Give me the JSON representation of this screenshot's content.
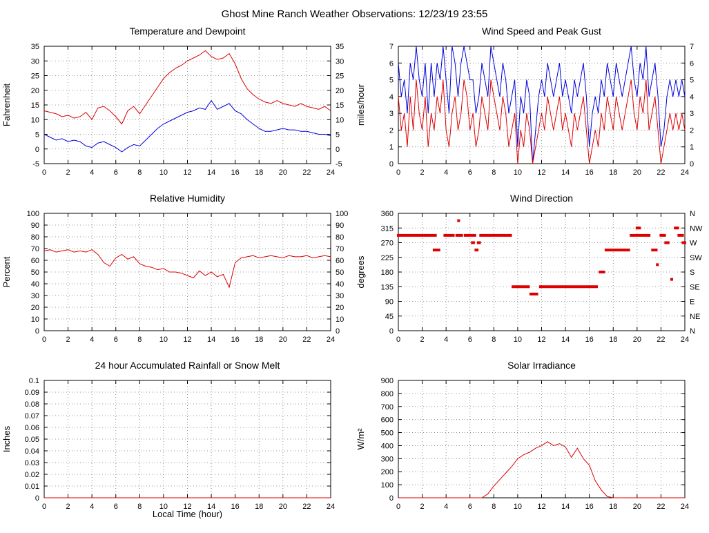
{
  "page": {
    "title": "Ghost Mine Ranch Weather Observations: 12/23/19 23:55"
  },
  "chart_data": [
    {
      "id": "temperature-dewpoint",
      "type": "line",
      "title": "Temperature and Dewpoint",
      "ylabel": "Fahrenheit",
      "xlim": [
        0,
        24
      ],
      "xtick_step": 2,
      "ylim": [
        -5,
        35
      ],
      "ytick_step": 5,
      "right_labels": "mirror",
      "grid": true,
      "series": [
        {
          "name": "Temperature",
          "color": "#dd0000",
          "x0": 0,
          "dx": 0.5,
          "values": [
            13,
            12.5,
            12,
            11,
            11.5,
            10.5,
            11,
            12.5,
            10,
            14,
            14.5,
            13,
            11,
            8.5,
            13,
            14.5,
            12,
            15,
            18,
            21,
            24,
            26,
            27.5,
            28.5,
            30,
            31,
            32,
            33.5,
            31.5,
            30.5,
            31,
            32.5,
            29,
            24,
            20.5,
            18.5,
            17,
            16,
            15.5,
            16.5,
            15.5,
            15,
            14.5,
            15.5,
            14.5,
            14,
            13.5,
            14.5,
            13
          ]
        },
        {
          "name": "Dewpoint",
          "color": "#0000dd",
          "x0": 0,
          "dx": 0.5,
          "values": [
            5,
            4,
            3,
            3.5,
            2.5,
            3,
            2.5,
            1,
            0.5,
            2,
            2.5,
            1.5,
            0.5,
            -1,
            0.5,
            1.5,
            1,
            3,
            5,
            7,
            8.5,
            9.5,
            10.5,
            11.5,
            12.5,
            13,
            14,
            13.5,
            16.5,
            13.5,
            14.5,
            15.5,
            13,
            12,
            10,
            8.5,
            7,
            6,
            6,
            6.5,
            7,
            6.5,
            6.5,
            6,
            6,
            5.5,
            5,
            5,
            4.5
          ]
        }
      ]
    },
    {
      "id": "wind-speed-gust",
      "type": "line",
      "title": "Wind Speed and Peak Gust",
      "ylabel": "miles/hour",
      "xlim": [
        0,
        24
      ],
      "xtick_step": 2,
      "ylim": [
        0,
        7
      ],
      "ytick_step": 1,
      "right_labels": "mirror",
      "grid": true,
      "series": [
        {
          "name": "Peak Gust",
          "color": "#0000dd",
          "x0": 0,
          "dx": 0.25,
          "values": [
            6,
            4,
            5,
            3,
            6,
            5,
            7,
            5,
            4,
            6,
            3,
            6,
            4,
            6,
            5,
            7,
            5,
            3,
            7,
            6,
            4,
            6,
            7,
            6,
            5,
            5,
            3,
            4,
            6,
            5,
            4,
            7,
            6,
            5,
            4,
            6,
            5,
            3,
            4,
            5,
            1,
            4,
            3,
            5,
            4,
            0,
            2,
            4,
            5,
            4,
            6,
            5,
            4,
            5,
            6,
            4,
            5,
            4,
            3,
            5,
            4,
            5,
            6,
            4,
            1,
            3,
            4,
            3,
            5,
            4,
            6,
            5,
            4,
            6,
            5,
            4,
            5,
            6,
            7,
            5,
            4,
            6,
            5,
            7,
            4,
            5,
            6,
            4,
            1,
            2,
            4,
            5,
            4,
            5,
            4,
            5,
            4
          ]
        },
        {
          "name": "Wind Speed",
          "color": "#dd0000",
          "x0": 0,
          "dx": 0.25,
          "values": [
            4,
            2,
            3,
            1,
            4,
            2,
            5,
            3,
            2,
            4,
            1,
            3,
            2,
            4,
            3,
            5,
            2,
            1,
            3,
            4,
            2,
            3,
            5,
            4,
            2,
            3,
            1,
            2,
            4,
            3,
            2,
            5,
            4,
            3,
            2,
            4,
            3,
            1,
            2,
            3,
            0,
            2,
            1,
            3,
            2,
            0,
            1,
            2,
            3,
            2,
            4,
            3,
            2,
            3,
            4,
            2,
            3,
            2,
            1,
            3,
            2,
            3,
            4,
            2,
            0,
            1,
            2,
            1,
            3,
            2,
            4,
            3,
            2,
            4,
            3,
            2,
            3,
            4,
            5,
            3,
            2,
            4,
            3,
            5,
            2,
            3,
            4,
            2,
            0,
            1,
            2,
            3,
            2,
            3,
            2,
            3,
            2
          ]
        }
      ]
    },
    {
      "id": "relative-humidity",
      "type": "line",
      "title": "Relative Humidity",
      "ylabel": "Percent",
      "xlim": [
        0,
        24
      ],
      "xtick_step": 2,
      "ylim": [
        0,
        100
      ],
      "ytick_step": 10,
      "right_labels": "mirror",
      "grid": true,
      "series": [
        {
          "name": "Relative Humidity",
          "color": "#dd0000",
          "x0": 0,
          "dx": 0.5,
          "values": [
            68,
            69,
            67,
            68,
            69,
            67,
            68,
            67,
            69,
            65,
            58,
            55,
            62,
            65,
            61,
            63,
            57,
            55,
            54,
            52,
            53,
            50,
            50,
            49,
            47,
            45,
            51,
            47,
            50,
            46,
            48,
            37,
            58,
            62,
            63,
            64,
            62,
            63,
            64,
            63,
            62,
            64,
            63,
            63,
            64,
            62,
            63,
            64,
            63
          ]
        }
      ]
    },
    {
      "id": "wind-direction",
      "type": "scatter",
      "title": "Wind Direction",
      "ylabel": "degrees",
      "xlim": [
        0,
        24
      ],
      "xtick_step": 2,
      "ylim": [
        0,
        360
      ],
      "ytick_step": 45,
      "right_labels": [
        "N",
        "NE",
        "E",
        "SE",
        "S",
        "SW",
        "W",
        "NW",
        "N"
      ],
      "grid": true,
      "series": [
        {
          "name": "Wind Direction",
          "color": "#dd0000",
          "segments": [
            [
              0.0,
              2.2,
              292.5
            ],
            [
              2.4,
              3.1,
              292.5
            ],
            [
              3.0,
              3.4,
              247.5
            ],
            [
              3.9,
              4.6,
              292.5
            ],
            [
              4.9,
              5.3,
              292.5
            ],
            [
              5.05,
              5.05,
              337.5
            ],
            [
              5.6,
              6.4,
              292.5
            ],
            [
              6.2,
              6.3,
              270
            ],
            [
              6.5,
              6.6,
              247.5
            ],
            [
              6.7,
              6.8,
              270
            ],
            [
              6.9,
              9.4,
              292.5
            ],
            [
              9.6,
              10.9,
              135
            ],
            [
              11.1,
              11.6,
              112.5
            ],
            [
              11.9,
              16.6,
              135
            ],
            [
              16.9,
              17.2,
              180
            ],
            [
              17.4,
              19.3,
              247.5
            ],
            [
              19.5,
              21.0,
              292.5
            ],
            [
              20.0,
              20.2,
              315
            ],
            [
              21.3,
              21.6,
              247.5
            ],
            [
              21.7,
              21.75,
              202.5
            ],
            [
              22.0,
              22.3,
              292.5
            ],
            [
              22.4,
              22.6,
              270
            ],
            [
              22.9,
              22.95,
              157.5
            ],
            [
              23.2,
              23.4,
              315
            ],
            [
              23.5,
              23.8,
              292.5
            ],
            [
              23.85,
              24.0,
              270
            ]
          ]
        }
      ]
    },
    {
      "id": "rainfall",
      "type": "line",
      "title": "24 hour Accumulated Rainfall or Snow Melt",
      "xlabel": "Local Time (hour)",
      "ylabel": "Inches",
      "xlim": [
        0,
        24
      ],
      "xtick_step": 2,
      "ylim": [
        0,
        0.1
      ],
      "ytick_step": 0.01,
      "right_labels": null,
      "grid": true,
      "series": [
        {
          "name": "Accumulated Rainfall",
          "color": "#dd0000",
          "x0": 0,
          "dx": 24,
          "values": [
            0,
            0
          ]
        }
      ]
    },
    {
      "id": "solar-irradiance",
      "type": "line",
      "title": "Solar Irradiance",
      "ylabel": "W/m²",
      "xlim": [
        0,
        24
      ],
      "xtick_step": 2,
      "ylim": [
        0,
        900
      ],
      "ytick_step": 100,
      "right_labels": null,
      "grid": true,
      "series": [
        {
          "name": "Solar Irradiance",
          "color": "#dd0000",
          "x0": 0,
          "dx": 0.5,
          "values": [
            0,
            0,
            0,
            0,
            0,
            0,
            0,
            0,
            0,
            0,
            0,
            0,
            0,
            0,
            0,
            30,
            90,
            140,
            190,
            240,
            300,
            330,
            350,
            380,
            400,
            430,
            400,
            415,
            390,
            310,
            380,
            300,
            250,
            130,
            60,
            10,
            0,
            0,
            0,
            0,
            0,
            0,
            0,
            0,
            0,
            0,
            0,
            0,
            0
          ]
        }
      ]
    }
  ]
}
